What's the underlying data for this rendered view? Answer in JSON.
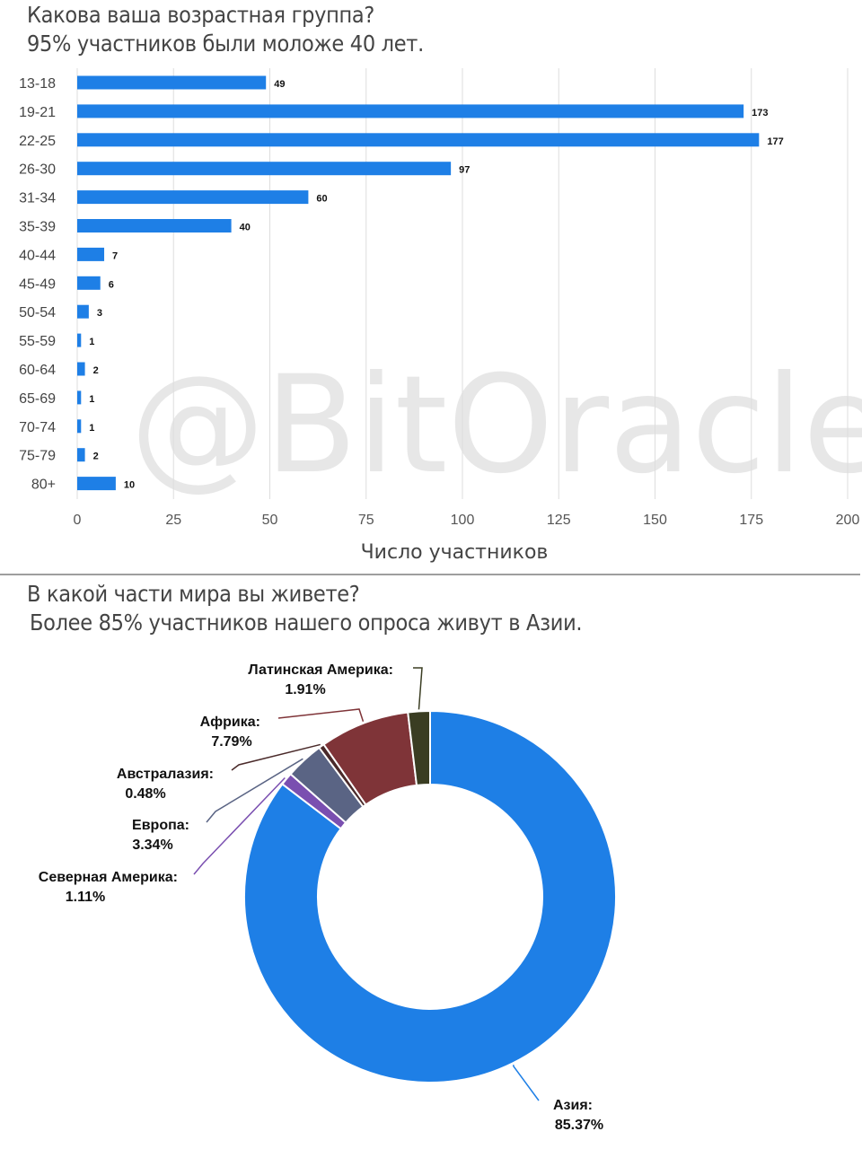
{
  "bar_section": {
    "title": "Какова ваша возрастная группа?",
    "subtitle": "95% участников были моложе 40 лет."
  },
  "donut_section": {
    "title": "В какой части мира вы живете?",
    "subtitle": "Более 85% участников нашего опроса живут в Азии."
  },
  "watermark": "@BitOracle",
  "colors": {
    "bar": "#1e7fe6",
    "grid": "#dddddd",
    "divider": "#9e9e9e"
  },
  "chart_data": [
    {
      "type": "bar",
      "orientation": "horizontal",
      "categories": [
        "13-18",
        "19-21",
        "22-25",
        "26-30",
        "31-34",
        "35-39",
        "40-44",
        "45-49",
        "50-54",
        "55-59",
        "60-64",
        "65-69",
        "70-74",
        "75-79",
        "80+"
      ],
      "values": [
        49,
        173,
        177,
        97,
        60,
        40,
        7,
        6,
        3,
        1,
        2,
        1,
        1,
        2,
        10
      ],
      "data_labels": [
        "49",
        "173",
        "177",
        "97",
        "60",
        "40",
        "7",
        "6",
        "3",
        "1",
        "2",
        "1",
        "1",
        "2",
        "10"
      ],
      "xlabel": "Число участников",
      "xlim": [
        0,
        200
      ],
      "xticks": [
        0,
        25,
        50,
        75,
        100,
        125,
        150,
        175,
        200
      ],
      "xtick_labels": [
        "0",
        "25",
        "50",
        "75",
        "100",
        "125",
        "150",
        "175",
        "200"
      ],
      "grid": true
    },
    {
      "type": "pie",
      "donut": true,
      "slices": [
        {
          "name": "Азия:",
          "label": "85.37%",
          "value": 85.37,
          "color": "#1e7fe6"
        },
        {
          "name": "Северная Америка:",
          "label": "1.11%",
          "value": 1.11,
          "color": "#7a4fb0"
        },
        {
          "name": "Европа:",
          "label": "3.34%",
          "value": 3.34,
          "color": "#5a6484"
        },
        {
          "name": "Австралазия:",
          "label": "0.48%",
          "value": 0.48,
          "color": "#4a2a2a"
        },
        {
          "name": "Африка:",
          "label": "7.79%",
          "value": 7.79,
          "color": "#7f3438"
        },
        {
          "name": "Латинская Америка:",
          "label": "1.91%",
          "value": 1.91,
          "color": "#3a3d22"
        }
      ]
    }
  ]
}
